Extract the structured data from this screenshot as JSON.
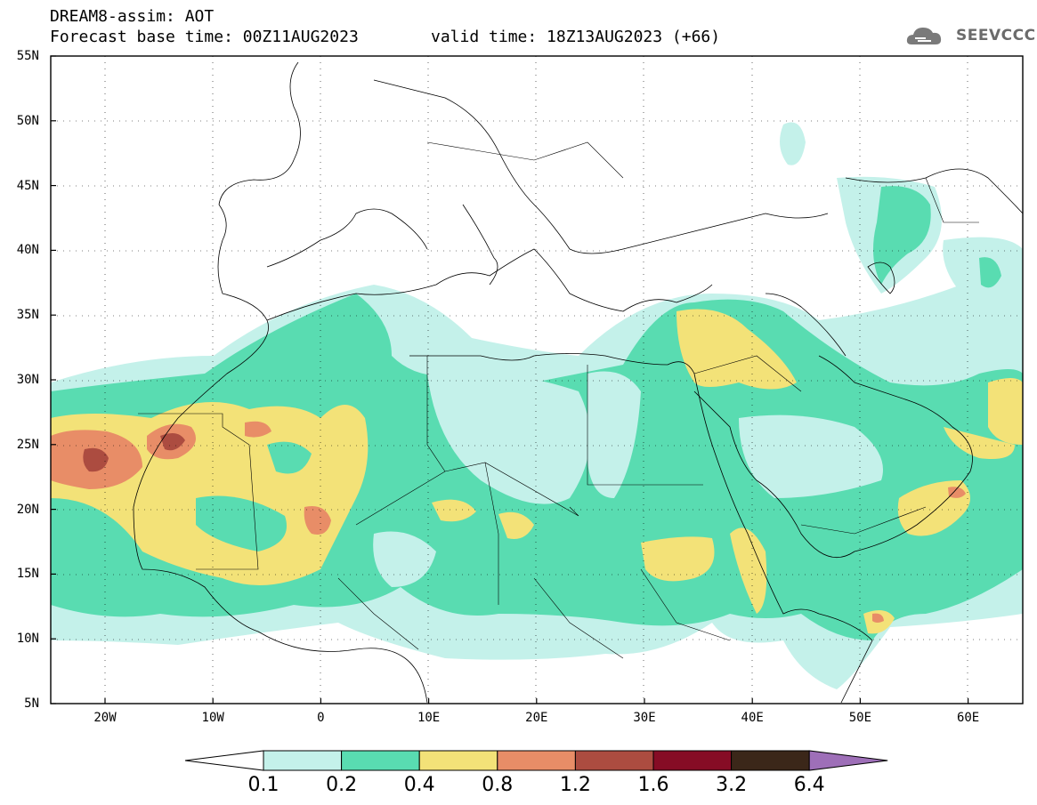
{
  "header": {
    "title": "DREAM8-assim: AOT",
    "base_time": "Forecast base time: 00Z11AUG2023",
    "valid_time": "valid time: 18Z13AUG2023 (+66)",
    "logo_text": "SEEVCCC"
  },
  "map": {
    "lat_labels": [
      "55N",
      "50N",
      "45N",
      "40N",
      "35N",
      "30N",
      "25N",
      "20N",
      "15N",
      "10N",
      "5N"
    ],
    "lon_labels": [
      "20W",
      "10W",
      "0",
      "10E",
      "20E",
      "30E",
      "40E",
      "50E",
      "60E"
    ]
  },
  "colorbar": {
    "levels": [
      "0.1",
      "0.2",
      "0.4",
      "0.8",
      "1.2",
      "1.6",
      "3.2",
      "6.4"
    ],
    "colors": [
      "#c4f1ea",
      "#59dcb1",
      "#f3e278",
      "#e88d67",
      "#ac4c40",
      "#860c25",
      "#3b2719"
    ],
    "under_color": "#ffffff",
    "over_color": "#9e6fb8"
  }
}
